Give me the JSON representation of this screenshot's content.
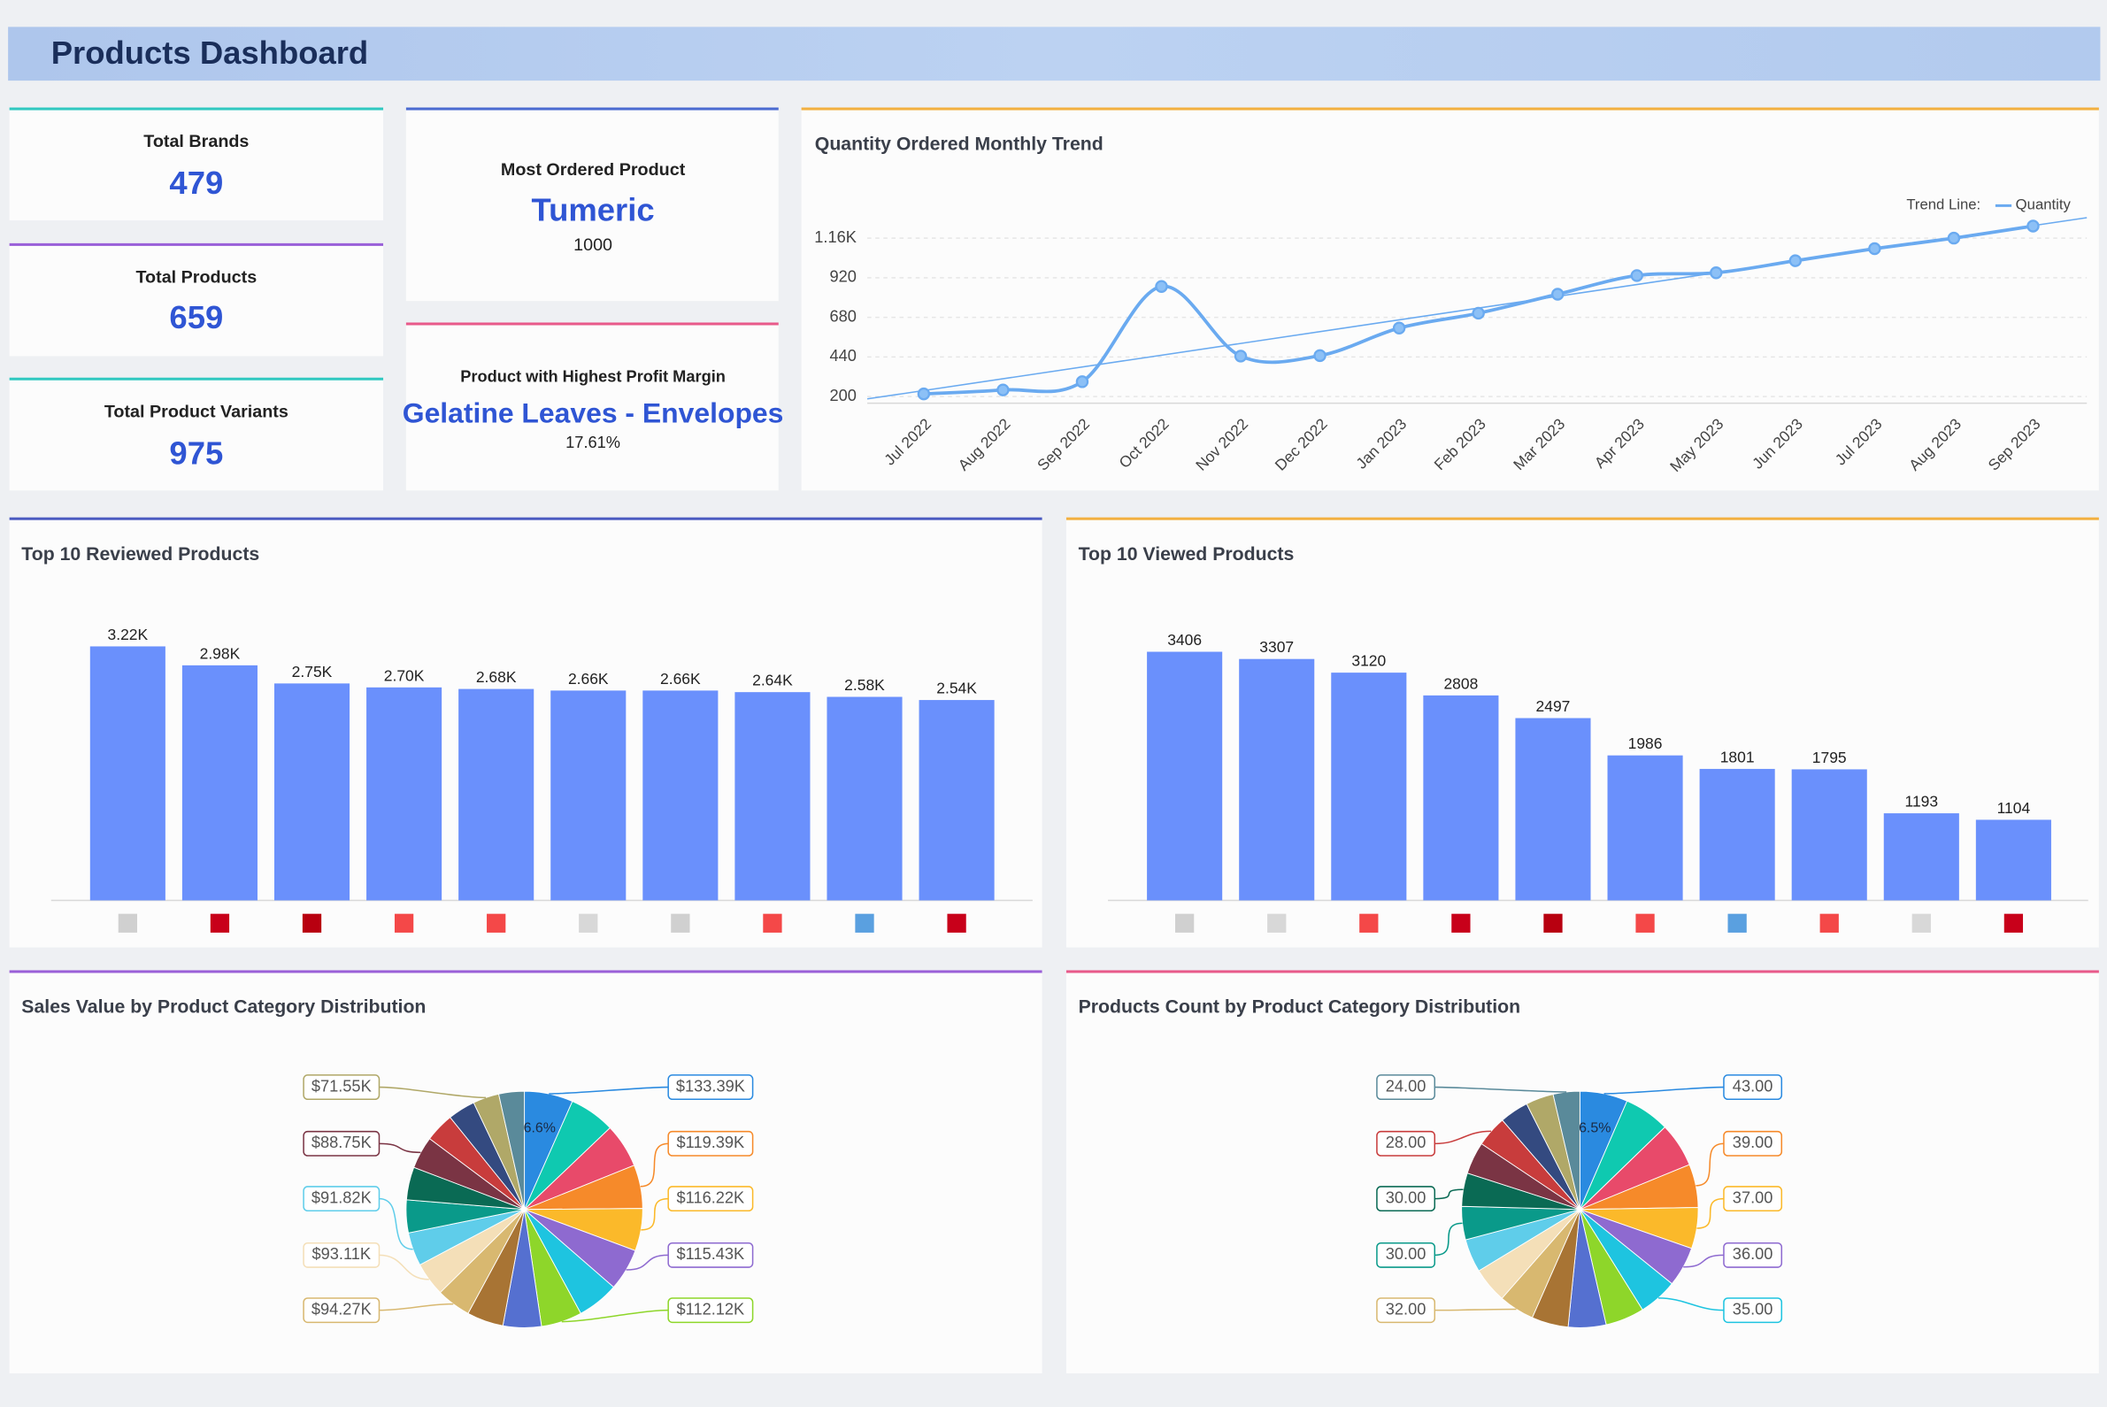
{
  "header": {
    "title": "Products Dashboard"
  },
  "kpis": [
    {
      "title": "Total Brands",
      "value": 479
    },
    {
      "title": "Total Products",
      "value": 659
    },
    {
      "title": "Total Product Variants",
      "value": 975
    }
  ],
  "most_ordered": {
    "title": "Most Ordered Product",
    "product": "Tumeric",
    "value": 1000
  },
  "highest_margin": {
    "title": "Product with Highest Profit Margin",
    "product": "Gelatine Leaves - Envelopes",
    "value": 17.61,
    "value_label": "17.61%"
  },
  "chart_data": [
    {
      "type": "line",
      "title": "Quantity Ordered Monthly Trend",
      "categories": [
        "Jul 2022",
        "Aug 2022",
        "Sep 2022",
        "Oct 2022",
        "Nov 2022",
        "Dec 2022",
        "Jan 2023",
        "Feb 2023",
        "Mar 2023",
        "Apr 2023",
        "May 2023",
        "Jun 2023",
        "Jul 2023",
        "Aug 2023",
        "Sep 2023"
      ],
      "series": [
        {
          "name": "Quantity",
          "color": "#6aaaf0",
          "values": [
            216,
            240,
            290,
            867,
            445,
            448,
            615,
            705,
            820,
            933,
            950,
            1023,
            1096,
            1160,
            1233
          ]
        }
      ],
      "legend_title": "Trend Line:",
      "trend_line": true,
      "ylim": [
        160,
        1300
      ],
      "yticks": [
        200,
        440,
        680,
        920,
        {
          "value": 1160,
          "label": "1.16K"
        }
      ],
      "grid": true
    },
    {
      "type": "bar",
      "title": "Top 10 Reviewed Products",
      "categories": [
        null,
        null,
        null,
        null,
        null,
        null,
        null,
        null,
        null,
        null
      ],
      "values": [
        3220,
        2980,
        2750,
        2700,
        2680,
        2660,
        2660,
        2640,
        2580,
        2540
      ],
      "value_labels": [
        "3.22K",
        "2.98K",
        "2.75K",
        "2.70K",
        "2.68K",
        "2.66K",
        "2.66K",
        "2.64K",
        "2.58K",
        "2.54K"
      ],
      "color": "#6a90fc",
      "icon_colors": [
        "#d0d0d0",
        "#c8001a",
        "#b80010",
        "#f44848",
        "#f44848",
        "#d8d8d8",
        "#d0d0d0",
        "#f44848",
        "#5aa0e0",
        "#c8001a"
      ]
    },
    {
      "type": "bar",
      "title": "Top 10 Viewed Products",
      "categories": [
        null,
        null,
        null,
        null,
        null,
        null,
        null,
        null,
        null,
        null
      ],
      "values": [
        3406,
        3307,
        3120,
        2808,
        2497,
        1986,
        1801,
        1795,
        1193,
        1104
      ],
      "color": "#6a90fc",
      "icon_colors": [
        "#d0d0d0",
        "#d8d8d8",
        "#f44848",
        "#c8001a",
        "#b80010",
        "#f44848",
        "#5aa0e0",
        "#f44848",
        "#d8d8d8",
        "#c8001a"
      ]
    },
    {
      "type": "pie",
      "title": "Sales Value by Product Category Distribution",
      "values": [
        133.39,
        125,
        121,
        119.39,
        116.22,
        115.43,
        114,
        112.12,
        105,
        100,
        94.27,
        93.11,
        91.82,
        90,
        90,
        88.75,
        80,
        75,
        71.55,
        70
      ],
      "value_labels": [
        "$133.39K",
        null,
        null,
        "$119.39K",
        "$116.22K",
        "$115.43K",
        null,
        "$112.12K",
        null,
        null,
        "$94.27K",
        "$93.11K",
        "$91.82K",
        null,
        null,
        "$88.75K",
        null,
        null,
        "$71.55K",
        null
      ],
      "percent_labels": [
        "6.6%",
        null,
        null,
        null,
        null,
        null,
        null,
        null,
        null,
        null,
        null,
        null,
        null,
        null,
        null,
        null,
        null,
        null,
        null,
        null
      ],
      "colors": [
        "#2a8ae0",
        "#0fc9b0",
        "#e84a6a",
        "#f68a2a",
        "#fbb92a",
        "#8e6ad0",
        "#1ec4e0",
        "#8ed62a",
        "#5570d0",
        "#a87434",
        "#d8b870",
        "#f4dfb8",
        "#5fcdea",
        "#0a9a8a",
        "#0a6a54",
        "#7a3444",
        "#c83c3c",
        "#344a80",
        "#b0a868",
        "#5a8a9a"
      ]
    },
    {
      "type": "pie",
      "title": "Products Count by Product Category Distribution",
      "values": [
        43,
        41,
        40,
        39,
        37,
        36,
        35,
        35,
        34,
        33,
        32,
        32,
        30,
        30,
        30,
        29,
        28,
        26,
        25,
        24
      ],
      "value_labels": [
        "43.00",
        null,
        null,
        "39.00",
        "37.00",
        "36.00",
        "35.00",
        null,
        null,
        null,
        "32.00",
        null,
        null,
        "30.00",
        "30.00",
        null,
        "28.00",
        null,
        null,
        "24.00"
      ],
      "percent_labels": [
        "6.5%",
        null,
        null,
        null,
        null,
        null,
        null,
        null,
        null,
        null,
        null,
        null,
        null,
        null,
        null,
        null,
        null,
        null,
        null,
        null
      ],
      "colors": [
        "#2a8ae0",
        "#0fc9b0",
        "#e84a6a",
        "#f68a2a",
        "#fbb92a",
        "#8e6ad0",
        "#1ec4e0",
        "#8ed62a",
        "#5570d0",
        "#a87434",
        "#d8b870",
        "#f4dfb8",
        "#5fcdea",
        "#0a9a8a",
        "#0a6a54",
        "#7a3444",
        "#c83c3c",
        "#344a80",
        "#b0a868",
        "#5a8a9a"
      ]
    }
  ]
}
